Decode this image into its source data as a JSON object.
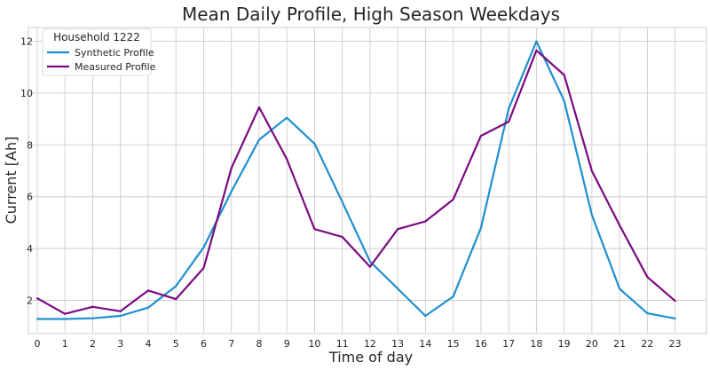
{
  "chart_data": {
    "type": "line",
    "title": "Mean Daily Profile, High Season Weekdays",
    "xlabel": "Time of day",
    "ylabel": "Current [Ah]",
    "x": [
      0,
      1,
      2,
      3,
      4,
      5,
      6,
      7,
      8,
      9,
      10,
      11,
      12,
      13,
      14,
      15,
      16,
      17,
      18,
      19,
      20,
      21,
      22,
      23
    ],
    "x_ticks": [
      "0",
      "1",
      "2",
      "3",
      "4",
      "5",
      "6",
      "7",
      "8",
      "9",
      "10",
      "11",
      "12",
      "13",
      "14",
      "15",
      "16",
      "17",
      "18",
      "19",
      "20",
      "21",
      "22",
      "23"
    ],
    "y_ticks": [
      "2",
      "4",
      "6",
      "8",
      "10",
      "12"
    ],
    "xlim": [
      0,
      24.1
    ],
    "ylim": [
      0.75,
      12.5
    ],
    "grid": true,
    "legend": {
      "title": "Household 1222",
      "placement": "top-left"
    },
    "series": [
      {
        "name": "Synthetic Profile",
        "color": "#1f8fd0",
        "values": [
          1.28,
          1.28,
          1.31,
          1.4,
          1.72,
          2.55,
          4.05,
          6.2,
          8.2,
          9.05,
          8.05,
          5.8,
          3.5,
          2.45,
          1.4,
          2.15,
          4.8,
          9.4,
          12.0,
          9.7,
          5.3,
          2.45,
          1.5,
          1.3
        ]
      },
      {
        "name": "Measured Profile",
        "color": "#7b0a82",
        "values": [
          2.08,
          1.48,
          1.75,
          1.58,
          2.38,
          2.05,
          3.25,
          7.1,
          9.45,
          7.45,
          4.75,
          4.45,
          3.3,
          4.75,
          5.05,
          5.9,
          8.35,
          8.9,
          11.65,
          10.7,
          7.0,
          4.9,
          2.9,
          1.98
        ]
      }
    ]
  },
  "style": {
    "background": "#ffffff",
    "grid_color": "#cccccc",
    "frame_color": "#e6e6e6"
  }
}
